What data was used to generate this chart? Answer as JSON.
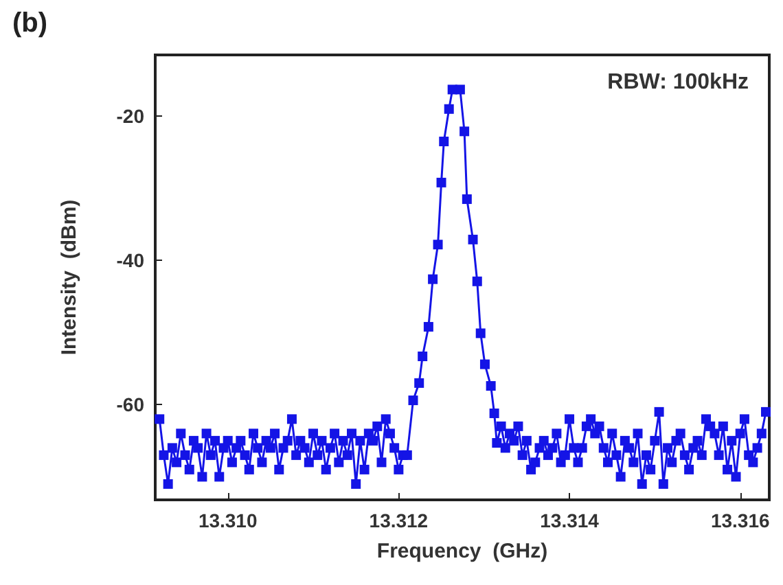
{
  "chart_data": {
    "type": "line",
    "title": "(b)",
    "xlabel": "Frequency  (GHz)",
    "ylabel": "Intensity  (dBm)",
    "annotations": [
      "RBW: 100kHz"
    ],
    "x": [
      13.3092,
      13.30925,
      13.3093,
      13.30935,
      13.3094,
      13.30945,
      13.3095,
      13.30955,
      13.3096,
      13.30965,
      13.3097,
      13.30975,
      13.3098,
      13.30985,
      13.3099,
      13.30995,
      13.31,
      13.31005,
      13.3101,
      13.31015,
      13.3102,
      13.31025,
      13.3103,
      13.31035,
      13.3104,
      13.31045,
      13.3105,
      13.31055,
      13.3106,
      13.31065,
      13.3107,
      13.31075,
      13.3108,
      13.31085,
      13.3109,
      13.31095,
      13.311,
      13.31105,
      13.3111,
      13.31115,
      13.3112,
      13.31125,
      13.3113,
      13.31135,
      13.3114,
      13.31145,
      13.3115,
      13.31155,
      13.3116,
      13.31165,
      13.3117,
      13.31175,
      13.3118,
      13.31185,
      13.3119,
      13.31195,
      13.312,
      13.31205,
      13.3121,
      13.31217,
      13.31224,
      13.31228,
      13.31235,
      13.3124,
      13.31246,
      13.3125,
      13.31253,
      13.31259,
      13.31263,
      13.31272,
      13.31277,
      13.3128,
      13.31287,
      13.31292,
      13.31296,
      13.31301,
      13.31308,
      13.31312,
      13.31315,
      13.3132,
      13.31325,
      13.3133,
      13.31335,
      13.3134,
      13.31345,
      13.3135,
      13.31355,
      13.3136,
      13.31365,
      13.3137,
      13.31375,
      13.3138,
      13.31385,
      13.3139,
      13.31395,
      13.314,
      13.31405,
      13.3141,
      13.31415,
      13.3142,
      13.31425,
      13.3143,
      13.31435,
      13.3144,
      13.31445,
      13.3145,
      13.31455,
      13.3146,
      13.31465,
      13.3147,
      13.31475,
      13.3148,
      13.31485,
      13.3149,
      13.31495,
      13.315,
      13.31505,
      13.3151,
      13.31515,
      13.3152,
      13.31525,
      13.3153,
      13.31535,
      13.3154,
      13.31545,
      13.3155,
      13.31555,
      13.3156,
      13.31565,
      13.3157,
      13.31575,
      13.3158,
      13.31585,
      13.3159,
      13.31595,
      13.316,
      13.31605,
      13.3161,
      13.31615,
      13.3162,
      13.31625,
      13.3163
    ],
    "series": [
      {
        "color": "#1414e6",
        "values": [
          -62,
          -67,
          -71,
          -66,
          -68,
          -64,
          -67,
          -69,
          -65,
          -66,
          -70,
          -64,
          -67,
          -65,
          -70,
          -66,
          -65,
          -68,
          -66,
          -65,
          -67,
          -69,
          -64,
          -66,
          -68,
          -65,
          -66,
          -64,
          -69,
          -66,
          -65,
          -62,
          -67,
          -65,
          -66,
          -68,
          -64,
          -67,
          -65,
          -69,
          -66,
          -64,
          -68,
          -65,
          -67,
          -64,
          -71,
          -65,
          -69,
          -64,
          -65,
          -63,
          -68,
          -62,
          -64,
          -66,
          -69,
          -67,
          -67,
          -59.4,
          -57,
          -53.3,
          -49.2,
          -42.6,
          -37.8,
          -29.2,
          -23.5,
          -19,
          -16.3,
          -16.3,
          -22.1,
          -31.5,
          -37.1,
          -42.9,
          -50.1,
          -54.4,
          -57.4,
          -61.2,
          -65.3,
          -63,
          -66,
          -64,
          -65,
          -63,
          -67,
          -65,
          -69,
          -68,
          -66,
          -65,
          -67,
          -66,
          -64,
          -68,
          -67,
          -62,
          -66,
          -68,
          -66,
          -63,
          -62,
          -64,
          -63,
          -66,
          -68,
          -64,
          -67,
          -70,
          -65,
          -66,
          -68,
          -64,
          -71,
          -67,
          -69,
          -65,
          -61,
          -71,
          -66,
          -68,
          -65,
          -64,
          -67,
          -69,
          -66,
          -65,
          -67,
          -62,
          -63,
          -64,
          -67,
          -63,
          -69,
          -65,
          -70,
          -64,
          -62,
          -67,
          -68,
          -66,
          -64,
          -61
        ]
      }
    ],
    "xlim": [
      13.30915,
      13.31634
    ],
    "ylim": [
      -73.2,
      -11.5
    ],
    "xticks": [
      {
        "value": 13.31,
        "label": "13.310"
      },
      {
        "value": 13.312,
        "label": "13.312"
      },
      {
        "value": 13.314,
        "label": "13.314"
      },
      {
        "value": 13.316,
        "label": "13.316"
      }
    ],
    "yticks": [
      -20,
      -40,
      -60
    ],
    "grid": false,
    "marker": "square",
    "line_style": "solid"
  }
}
